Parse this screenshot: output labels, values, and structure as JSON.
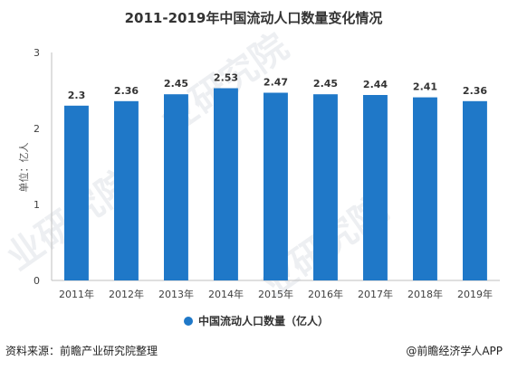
{
  "chart_data": {
    "type": "bar",
    "title": "2011-2019年中国流动人口数量变化情况",
    "ylabel": "单位：亿人",
    "categories": [
      "2011年",
      "2012年",
      "2013年",
      "2014年",
      "2015年",
      "2016年",
      "2017年",
      "2018年",
      "2019年"
    ],
    "values": [
      2.3,
      2.36,
      2.45,
      2.53,
      2.47,
      2.45,
      2.44,
      2.41,
      2.36
    ],
    "series": [
      {
        "name": "中国流动人口数量（亿人）",
        "values": [
          2.3,
          2.36,
          2.45,
          2.53,
          2.47,
          2.45,
          2.44,
          2.41,
          2.36
        ]
      }
    ],
    "ylim": [
      0,
      3
    ],
    "yticks": [
      "0",
      "1",
      "2",
      "3"
    ],
    "grid": false,
    "legend": "bottom-center",
    "bar_color": "#1f78c8"
  },
  "footer": {
    "source": "资料来源：前瞻产业研究院整理",
    "brand": "@前瞻经济学人APP"
  },
  "watermarks": [
    "业研究院",
    "业研究院",
    "业研究院"
  ]
}
